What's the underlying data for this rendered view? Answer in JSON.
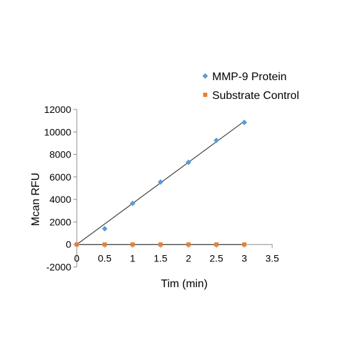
{
  "chart_data": {
    "type": "scatter",
    "title": "",
    "xlabel": "Tim (min)",
    "ylabel": "Mcan RFU",
    "xlim": [
      0,
      3.5
    ],
    "ylim": [
      -2000,
      12000
    ],
    "xticks": [
      0,
      0.5,
      1,
      1.5,
      2,
      2.5,
      3,
      3.5
    ],
    "xtick_labels": [
      "0",
      "0.5",
      "1",
      "1.5",
      "2",
      "2.5",
      "3",
      "3.5"
    ],
    "yticks": [
      -2000,
      0,
      2000,
      4000,
      6000,
      8000,
      10000,
      12000
    ],
    "ytick_labels": [
      "-2000",
      "0",
      "2000",
      "4000",
      "6000",
      "8000",
      "10000",
      "12000"
    ],
    "grid": false,
    "legend_position": "top-right",
    "series": [
      {
        "name": "MMP-9 Protein",
        "color": "#5b9bd5",
        "marker": "diamond",
        "x": [
          0,
          0.5,
          1,
          1.5,
          2,
          2.5,
          3
        ],
        "y": [
          0,
          1400,
          3650,
          5550,
          7300,
          9250,
          10850
        ]
      },
      {
        "name": "Substrate Control",
        "color": "#ed7d31",
        "marker": "square",
        "x": [
          0,
          0.5,
          1,
          1.5,
          2,
          2.5,
          3
        ],
        "y": [
          0,
          0,
          0,
          0,
          0,
          0,
          0
        ]
      }
    ],
    "trendlines": [
      {
        "series": "MMP-9 Protein",
        "color": "#404040",
        "x": [
          0,
          3
        ],
        "y": [
          0,
          10950
        ]
      },
      {
        "series": "Substrate Control",
        "color": "#404040",
        "x": [
          0,
          3
        ],
        "y": [
          0,
          0
        ]
      }
    ]
  }
}
